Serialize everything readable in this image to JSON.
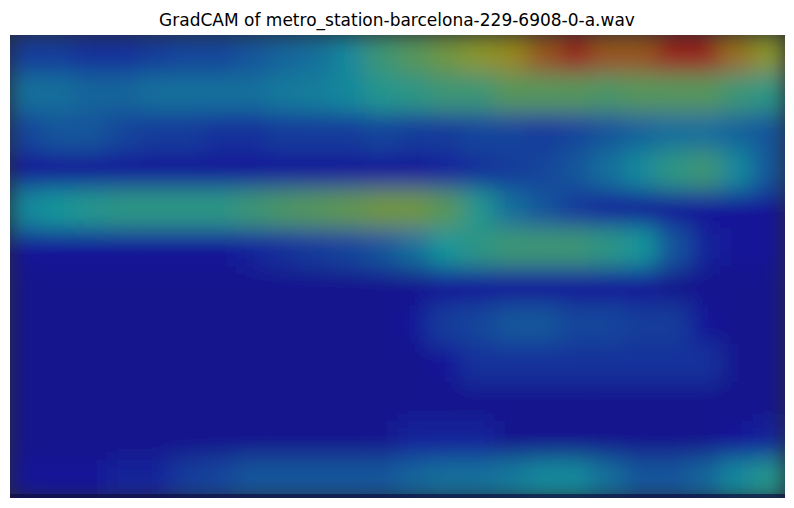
{
  "chart_data": {
    "type": "heatmap",
    "title": "GradCAM of metro_station-barcelona-229-6908-0-a.wav",
    "tick_labels": false,
    "zlim": [
      0,
      1
    ],
    "cells": [
      [
        0.2,
        0.2,
        0.18,
        0.18,
        0.2,
        0.22,
        0.22,
        0.25,
        0.28,
        0.3,
        0.35,
        0.45,
        0.5,
        0.55,
        0.6,
        0.65,
        0.75,
        0.85,
        0.75,
        0.75,
        0.85,
        0.85,
        0.7,
        0.6
      ],
      [
        0.3,
        0.3,
        0.28,
        0.28,
        0.3,
        0.3,
        0.3,
        0.3,
        0.32,
        0.33,
        0.35,
        0.4,
        0.42,
        0.45,
        0.45,
        0.5,
        0.5,
        0.5,
        0.48,
        0.5,
        0.5,
        0.5,
        0.45,
        0.42
      ],
      [
        0.22,
        0.25,
        0.25,
        0.22,
        0.2,
        0.2,
        0.18,
        0.18,
        0.2,
        0.2,
        0.2,
        0.22,
        0.2,
        0.2,
        0.22,
        0.22,
        0.2,
        0.22,
        0.25,
        0.28,
        0.3,
        0.3,
        0.28,
        0.25
      ],
      [
        0.12,
        0.12,
        0.12,
        0.12,
        0.12,
        0.12,
        0.12,
        0.12,
        0.12,
        0.12,
        0.12,
        0.12,
        0.12,
        0.15,
        0.18,
        0.2,
        0.22,
        0.25,
        0.3,
        0.35,
        0.42,
        0.45,
        0.35,
        0.25
      ],
      [
        0.35,
        0.38,
        0.4,
        0.42,
        0.42,
        0.42,
        0.42,
        0.45,
        0.48,
        0.5,
        0.52,
        0.55,
        0.55,
        0.5,
        0.4,
        0.3,
        0.25,
        0.2,
        0.15,
        0.12,
        0.12,
        0.12,
        0.12,
        0.12
      ],
      [
        0.12,
        0.12,
        0.12,
        0.12,
        0.12,
        0.12,
        0.12,
        0.15,
        0.18,
        0.2,
        0.22,
        0.25,
        0.3,
        0.38,
        0.42,
        0.45,
        0.45,
        0.45,
        0.42,
        0.38,
        0.25,
        0.15,
        0.12,
        0.12
      ],
      [
        0.1,
        0.1,
        0.1,
        0.1,
        0.1,
        0.1,
        0.1,
        0.1,
        0.1,
        0.1,
        0.1,
        0.1,
        0.1,
        0.12,
        0.12,
        0.12,
        0.12,
        0.12,
        0.12,
        0.12,
        0.1,
        0.1,
        0.1,
        0.1
      ],
      [
        0.1,
        0.1,
        0.1,
        0.1,
        0.1,
        0.1,
        0.1,
        0.1,
        0.1,
        0.1,
        0.1,
        0.1,
        0.12,
        0.2,
        0.22,
        0.25,
        0.25,
        0.22,
        0.22,
        0.2,
        0.2,
        0.12,
        0.1,
        0.1
      ],
      [
        0.1,
        0.1,
        0.1,
        0.1,
        0.1,
        0.1,
        0.1,
        0.1,
        0.1,
        0.1,
        0.1,
        0.1,
        0.1,
        0.12,
        0.18,
        0.18,
        0.18,
        0.18,
        0.18,
        0.18,
        0.18,
        0.18,
        0.1,
        0.1
      ],
      [
        0.1,
        0.1,
        0.1,
        0.1,
        0.1,
        0.1,
        0.1,
        0.1,
        0.1,
        0.1,
        0.1,
        0.1,
        0.1,
        0.1,
        0.1,
        0.1,
        0.1,
        0.1,
        0.1,
        0.1,
        0.1,
        0.1,
        0.1,
        0.1
      ],
      [
        0.1,
        0.1,
        0.1,
        0.1,
        0.1,
        0.1,
        0.1,
        0.1,
        0.1,
        0.1,
        0.1,
        0.1,
        0.15,
        0.15,
        0.15,
        0.1,
        0.1,
        0.1,
        0.1,
        0.1,
        0.1,
        0.1,
        0.12,
        0.15
      ],
      [
        0.12,
        0.12,
        0.12,
        0.15,
        0.15,
        0.2,
        0.22,
        0.25,
        0.25,
        0.25,
        0.25,
        0.25,
        0.28,
        0.3,
        0.3,
        0.32,
        0.35,
        0.35,
        0.3,
        0.25,
        0.25,
        0.28,
        0.35,
        0.4
      ]
    ]
  }
}
